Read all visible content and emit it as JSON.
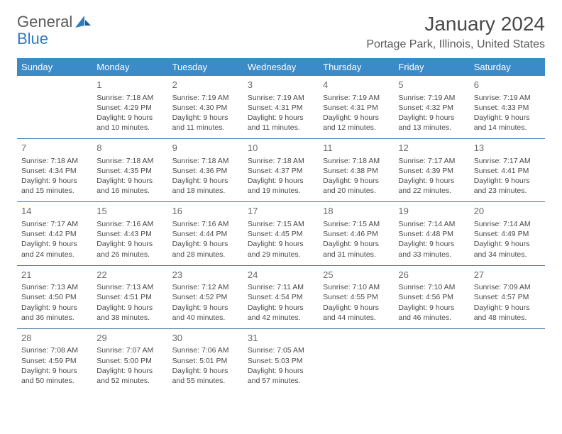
{
  "logo": {
    "text1": "General",
    "text2": "Blue"
  },
  "title": "January 2024",
  "location": "Portage Park, Illinois, United States",
  "colors": {
    "header_bg": "#3b8bc9",
    "header_text": "#ffffff",
    "week_border": "#4a7ba8",
    "text": "#4a4a4a",
    "logo_blue": "#2f7bbf"
  },
  "day_names": [
    "Sunday",
    "Monday",
    "Tuesday",
    "Wednesday",
    "Thursday",
    "Friday",
    "Saturday"
  ],
  "weeks": [
    [
      null,
      {
        "n": "1",
        "sr": "Sunrise: 7:18 AM",
        "ss": "Sunset: 4:29 PM",
        "d1": "Daylight: 9 hours",
        "d2": "and 10 minutes."
      },
      {
        "n": "2",
        "sr": "Sunrise: 7:19 AM",
        "ss": "Sunset: 4:30 PM",
        "d1": "Daylight: 9 hours",
        "d2": "and 11 minutes."
      },
      {
        "n": "3",
        "sr": "Sunrise: 7:19 AM",
        "ss": "Sunset: 4:31 PM",
        "d1": "Daylight: 9 hours",
        "d2": "and 11 minutes."
      },
      {
        "n": "4",
        "sr": "Sunrise: 7:19 AM",
        "ss": "Sunset: 4:31 PM",
        "d1": "Daylight: 9 hours",
        "d2": "and 12 minutes."
      },
      {
        "n": "5",
        "sr": "Sunrise: 7:19 AM",
        "ss": "Sunset: 4:32 PM",
        "d1": "Daylight: 9 hours",
        "d2": "and 13 minutes."
      },
      {
        "n": "6",
        "sr": "Sunrise: 7:19 AM",
        "ss": "Sunset: 4:33 PM",
        "d1": "Daylight: 9 hours",
        "d2": "and 14 minutes."
      }
    ],
    [
      {
        "n": "7",
        "sr": "Sunrise: 7:18 AM",
        "ss": "Sunset: 4:34 PM",
        "d1": "Daylight: 9 hours",
        "d2": "and 15 minutes."
      },
      {
        "n": "8",
        "sr": "Sunrise: 7:18 AM",
        "ss": "Sunset: 4:35 PM",
        "d1": "Daylight: 9 hours",
        "d2": "and 16 minutes."
      },
      {
        "n": "9",
        "sr": "Sunrise: 7:18 AM",
        "ss": "Sunset: 4:36 PM",
        "d1": "Daylight: 9 hours",
        "d2": "and 18 minutes."
      },
      {
        "n": "10",
        "sr": "Sunrise: 7:18 AM",
        "ss": "Sunset: 4:37 PM",
        "d1": "Daylight: 9 hours",
        "d2": "and 19 minutes."
      },
      {
        "n": "11",
        "sr": "Sunrise: 7:18 AM",
        "ss": "Sunset: 4:38 PM",
        "d1": "Daylight: 9 hours",
        "d2": "and 20 minutes."
      },
      {
        "n": "12",
        "sr": "Sunrise: 7:17 AM",
        "ss": "Sunset: 4:39 PM",
        "d1": "Daylight: 9 hours",
        "d2": "and 22 minutes."
      },
      {
        "n": "13",
        "sr": "Sunrise: 7:17 AM",
        "ss": "Sunset: 4:41 PM",
        "d1": "Daylight: 9 hours",
        "d2": "and 23 minutes."
      }
    ],
    [
      {
        "n": "14",
        "sr": "Sunrise: 7:17 AM",
        "ss": "Sunset: 4:42 PM",
        "d1": "Daylight: 9 hours",
        "d2": "and 24 minutes."
      },
      {
        "n": "15",
        "sr": "Sunrise: 7:16 AM",
        "ss": "Sunset: 4:43 PM",
        "d1": "Daylight: 9 hours",
        "d2": "and 26 minutes."
      },
      {
        "n": "16",
        "sr": "Sunrise: 7:16 AM",
        "ss": "Sunset: 4:44 PM",
        "d1": "Daylight: 9 hours",
        "d2": "and 28 minutes."
      },
      {
        "n": "17",
        "sr": "Sunrise: 7:15 AM",
        "ss": "Sunset: 4:45 PM",
        "d1": "Daylight: 9 hours",
        "d2": "and 29 minutes."
      },
      {
        "n": "18",
        "sr": "Sunrise: 7:15 AM",
        "ss": "Sunset: 4:46 PM",
        "d1": "Daylight: 9 hours",
        "d2": "and 31 minutes."
      },
      {
        "n": "19",
        "sr": "Sunrise: 7:14 AM",
        "ss": "Sunset: 4:48 PM",
        "d1": "Daylight: 9 hours",
        "d2": "and 33 minutes."
      },
      {
        "n": "20",
        "sr": "Sunrise: 7:14 AM",
        "ss": "Sunset: 4:49 PM",
        "d1": "Daylight: 9 hours",
        "d2": "and 34 minutes."
      }
    ],
    [
      {
        "n": "21",
        "sr": "Sunrise: 7:13 AM",
        "ss": "Sunset: 4:50 PM",
        "d1": "Daylight: 9 hours",
        "d2": "and 36 minutes."
      },
      {
        "n": "22",
        "sr": "Sunrise: 7:13 AM",
        "ss": "Sunset: 4:51 PM",
        "d1": "Daylight: 9 hours",
        "d2": "and 38 minutes."
      },
      {
        "n": "23",
        "sr": "Sunrise: 7:12 AM",
        "ss": "Sunset: 4:52 PM",
        "d1": "Daylight: 9 hours",
        "d2": "and 40 minutes."
      },
      {
        "n": "24",
        "sr": "Sunrise: 7:11 AM",
        "ss": "Sunset: 4:54 PM",
        "d1": "Daylight: 9 hours",
        "d2": "and 42 minutes."
      },
      {
        "n": "25",
        "sr": "Sunrise: 7:10 AM",
        "ss": "Sunset: 4:55 PM",
        "d1": "Daylight: 9 hours",
        "d2": "and 44 minutes."
      },
      {
        "n": "26",
        "sr": "Sunrise: 7:10 AM",
        "ss": "Sunset: 4:56 PM",
        "d1": "Daylight: 9 hours",
        "d2": "and 46 minutes."
      },
      {
        "n": "27",
        "sr": "Sunrise: 7:09 AM",
        "ss": "Sunset: 4:57 PM",
        "d1": "Daylight: 9 hours",
        "d2": "and 48 minutes."
      }
    ],
    [
      {
        "n": "28",
        "sr": "Sunrise: 7:08 AM",
        "ss": "Sunset: 4:59 PM",
        "d1": "Daylight: 9 hours",
        "d2": "and 50 minutes."
      },
      {
        "n": "29",
        "sr": "Sunrise: 7:07 AM",
        "ss": "Sunset: 5:00 PM",
        "d1": "Daylight: 9 hours",
        "d2": "and 52 minutes."
      },
      {
        "n": "30",
        "sr": "Sunrise: 7:06 AM",
        "ss": "Sunset: 5:01 PM",
        "d1": "Daylight: 9 hours",
        "d2": "and 55 minutes."
      },
      {
        "n": "31",
        "sr": "Sunrise: 7:05 AM",
        "ss": "Sunset: 5:03 PM",
        "d1": "Daylight: 9 hours",
        "d2": "and 57 minutes."
      },
      null,
      null,
      null
    ]
  ]
}
